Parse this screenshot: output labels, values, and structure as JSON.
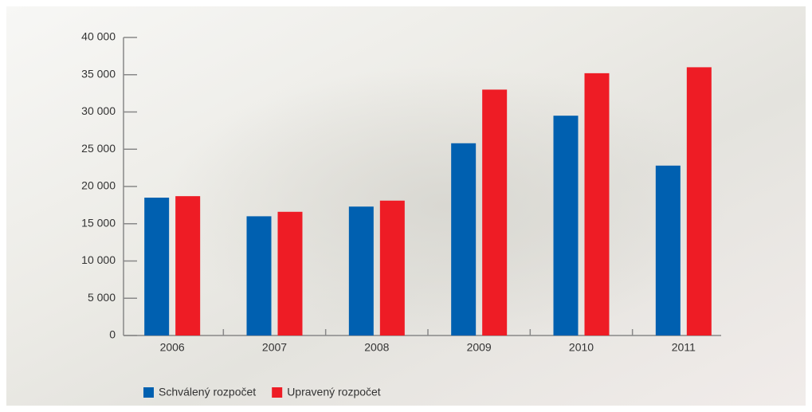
{
  "chart_data": {
    "type": "bar",
    "categories": [
      "2006",
      "2007",
      "2008",
      "2009",
      "2010",
      "2011"
    ],
    "series": [
      {
        "name": "Schválený rozpočet",
        "color": "#0060b0",
        "values": [
          18500,
          16000,
          17300,
          25800,
          29500,
          22800
        ]
      },
      {
        "name": "Upravený rozpočet",
        "color": "#ee1c25",
        "values": [
          18700,
          16600,
          18100,
          33000,
          35200,
          36000
        ]
      }
    ],
    "ylim": [
      0,
      40000
    ],
    "yticks": [
      0,
      {
        "value": 5000,
        "label": "5 000"
      },
      {
        "value": 10000,
        "label": "10 000"
      },
      {
        "value": 15000,
        "label": "15 000"
      },
      {
        "value": 20000,
        "label": "20 000"
      },
      {
        "value": 25000,
        "label": "25 000"
      },
      {
        "value": 30000,
        "label": "30 000"
      },
      {
        "value": 35000,
        "label": "35 000"
      },
      {
        "value": 40000,
        "label": "40 000"
      }
    ],
    "legend": "bottom-left"
  }
}
